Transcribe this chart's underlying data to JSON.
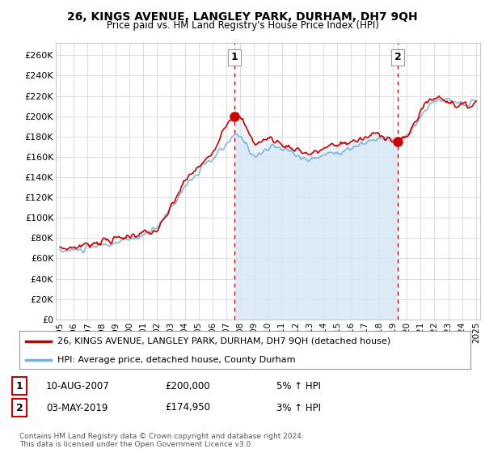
{
  "title": "26, KINGS AVENUE, LANGLEY PARK, DURHAM, DH7 9QH",
  "subtitle": "Price paid vs. HM Land Registry's House Price Index (HPI)",
  "legend_line1": "26, KINGS AVENUE, LANGLEY PARK, DURHAM, DH7 9QH (detached house)",
  "legend_line2": "HPI: Average price, detached house, County Durham",
  "annotation1_date": "10-AUG-2007",
  "annotation1_price": "£200,000",
  "annotation1_hpi": "5% ↑ HPI",
  "annotation2_date": "03-MAY-2019",
  "annotation2_price": "£174,950",
  "annotation2_hpi": "3% ↑ HPI",
  "footer": "Contains HM Land Registry data © Crown copyright and database right 2024.\nThis data is licensed under the Open Government Licence v3.0.",
  "yticks": [
    0,
    20000,
    40000,
    60000,
    80000,
    100000,
    120000,
    140000,
    160000,
    180000,
    200000,
    220000,
    240000,
    260000
  ],
  "ylim": [
    0,
    272000
  ],
  "bg_color": "#ffffff",
  "grid_color": "#d8d8d8",
  "line_color_red": "#cc0000",
  "line_color_blue": "#7ab0d4",
  "fill_color_blue": "#d6e8f5",
  "sale1_x": 2007.6,
  "sale1_y": 200000,
  "sale2_x": 2019.35,
  "sale2_y": 174950,
  "xlim": [
    1994.7,
    2025.3
  ],
  "xtick_years": [
    1995,
    1996,
    1997,
    1998,
    1999,
    2000,
    2001,
    2002,
    2003,
    2004,
    2005,
    2006,
    2007,
    2008,
    2009,
    2010,
    2011,
    2012,
    2013,
    2014,
    2015,
    2016,
    2017,
    2018,
    2019,
    2020,
    2021,
    2022,
    2023,
    2024,
    2025
  ]
}
